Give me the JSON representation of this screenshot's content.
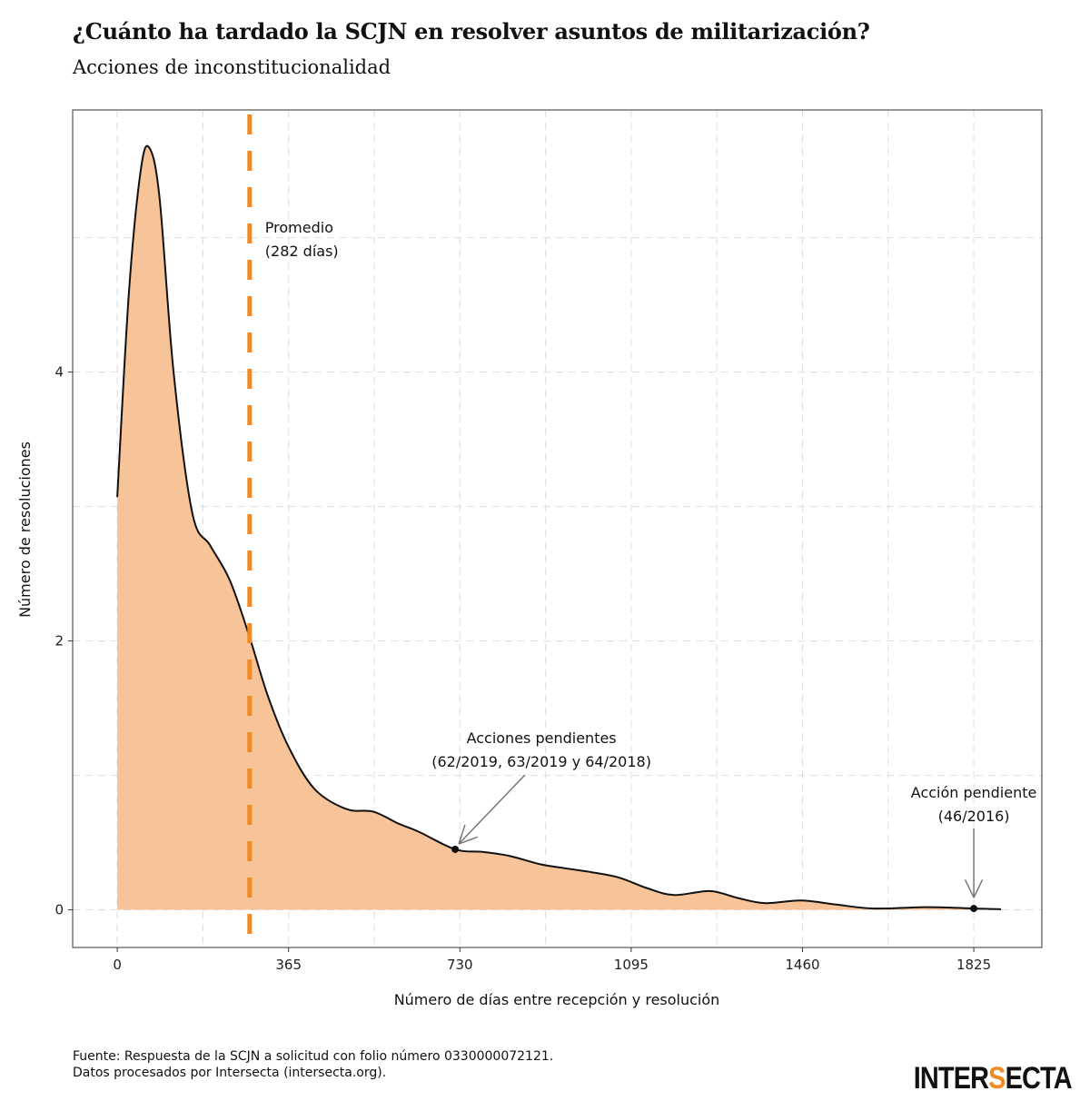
{
  "header": {
    "title": "¿Cuánto ha tardado la SCJN en resolver asuntos de militarización?",
    "subtitle": "Acciones de inconstitucionalidad"
  },
  "chart_data": {
    "type": "area",
    "title": "¿Cuánto ha tardado la SCJN en resolver asuntos de militarización?",
    "subtitle": "Acciones de inconstitucionalidad",
    "xlabel": "Número de días entre recepción y resolución",
    "ylabel": "Número de resoluciones",
    "xlim": [
      -95,
      1970
    ],
    "ylim": [
      -0.28,
      5.95
    ],
    "xticks": [
      0,
      365,
      730,
      1095,
      1460,
      1825
    ],
    "xtick_labels": [
      "0",
      "365",
      "730",
      "1095",
      "1460",
      "1825"
    ],
    "yticks": [
      0,
      2,
      4
    ],
    "ytick_labels": [
      "0",
      "2",
      "4"
    ],
    "grid": true,
    "fill_color": "#f7c398",
    "line_color": "#111111",
    "mean_line_color": "#f08a24",
    "x": [
      0,
      25,
      50,
      68,
      90,
      120,
      160,
      198,
      240,
      281,
      320,
      364,
      420,
      488,
      546,
      600,
      643,
      720,
      780,
      837,
      900,
      953,
      1010,
      1069,
      1130,
      1186,
      1263,
      1320,
      1379,
      1457,
      1530,
      1612,
      1728,
      1825,
      1883
    ],
    "y": [
      3.07,
      4.6,
      5.5,
      5.67,
      5.3,
      4.0,
      2.95,
      2.71,
      2.45,
      2.04,
      1.6,
      1.22,
      0.9,
      0.75,
      0.73,
      0.64,
      0.58,
      0.45,
      0.43,
      0.4,
      0.34,
      0.31,
      0.28,
      0.24,
      0.16,
      0.11,
      0.14,
      0.09,
      0.05,
      0.07,
      0.04,
      0.01,
      0.02,
      0.01,
      0.005
    ],
    "mean": {
      "value": 282,
      "label_line1": "Promedio",
      "label_line2": "(282 días)"
    },
    "annotations": [
      {
        "x": 720,
        "y": 0.45,
        "line1": "Acciones pendientes",
        "line2": "(62/2019, 63/2019 y 64/2018)"
      },
      {
        "x": 1825,
        "y": 0.01,
        "line1": "Acción pendiente",
        "line2": "(46/2016)"
      }
    ]
  },
  "footer": {
    "source_line1": "Fuente: Respuesta de la SCJN a solicitud con folio número 0330000072121.",
    "source_line2": "Datos procesados por Intersecta (intersecta.org).",
    "logo_text": "INTERSECTA"
  }
}
